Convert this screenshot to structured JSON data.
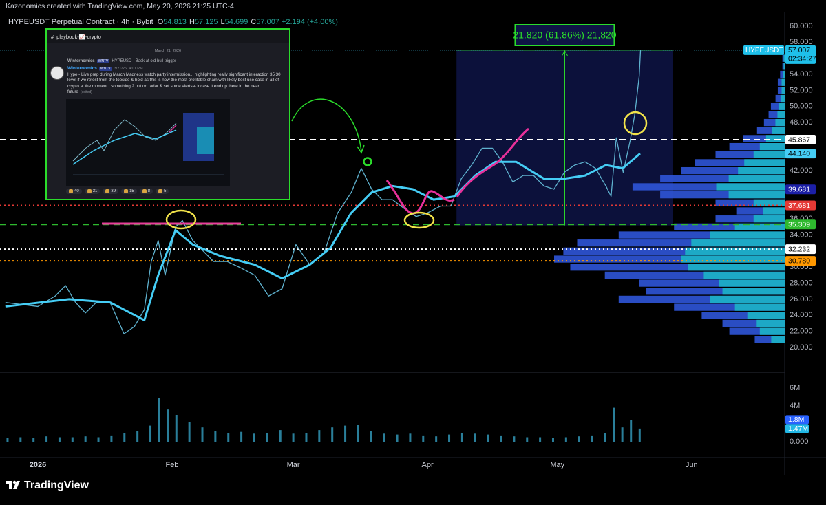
{
  "header": "Kazonomics created with TradingView.com, May 20, 2026 21:25 UTC-4",
  "chart_data": [
    {
      "type": "line",
      "title": "HYPEUSDT Perpetual Contract · 4h · Bybit",
      "ohlc_labels": [
        "O",
        "H",
        "L",
        "C"
      ],
      "ohlc": [
        54.813,
        57.125,
        54.699,
        57.007
      ],
      "change": {
        "value": 2.194,
        "label": "+2.194 (+4.00%)"
      },
      "countdown": "02:34:27",
      "xlim": [
        -7.47,
        172.5
      ],
      "xticks": [
        {
          "value": 0,
          "label": "2026"
        },
        {
          "value": 31,
          "label": "Feb"
        },
        {
          "value": 59,
          "label": "Mar"
        },
        {
          "value": 90,
          "label": "Apr"
        },
        {
          "value": 120,
          "label": "May"
        },
        {
          "value": 151,
          "label": "Jun"
        }
      ],
      "ylim": [
        17.0,
        61.71
      ],
      "yticks": [
        {
          "value": 20,
          "label": "20.000"
        },
        {
          "value": 22,
          "label": "22.000"
        },
        {
          "value": 24,
          "label": "24.000"
        },
        {
          "value": 26,
          "label": "26.000"
        },
        {
          "value": 28,
          "label": "28.000"
        },
        {
          "value": 30,
          "label": "30.000"
        },
        {
          "value": 34,
          "label": "34.000"
        },
        {
          "value": 36,
          "label": "36.000"
        },
        {
          "value": 42,
          "label": "42.000"
        },
        {
          "value": 48,
          "label": "48.000"
        },
        {
          "value": 50,
          "label": "50.000"
        },
        {
          "value": 52,
          "label": "52.000"
        },
        {
          "value": 54,
          "label": "54.000"
        },
        {
          "value": 58,
          "label": "58.000"
        },
        {
          "value": 60,
          "label": "60.000"
        }
      ],
      "grid": false,
      "series": [
        {
          "name": "HYPEUSDT.P",
          "color": "#5fb2cf",
          "x": [
            -7.5,
            0,
            4,
            6.4,
            8.7,
            11,
            13.5,
            16.7,
            19.9,
            22.3,
            24.6,
            26.2,
            27.8,
            29.4,
            31.8,
            33.4,
            35.8,
            38.2,
            40.6,
            43.7,
            46.9,
            50.1,
            53.3,
            56.4,
            59.6,
            62.8,
            66,
            69.2,
            72.4,
            74.7,
            77.1,
            79.5,
            81.9,
            85.1,
            87.4,
            89.8,
            93,
            95.4,
            97.8,
            100.2,
            102.6,
            105,
            107.3,
            109.7,
            112.1,
            114.5,
            116.9,
            119.2,
            121.6,
            124,
            126.4,
            128.8,
            131.2,
            132.4,
            133.6,
            135.2,
            136.8,
            137.9,
            138.9,
            139.2
          ],
          "values": [
            25.6,
            25.1,
            26.4,
            27.7,
            25.6,
            24.3,
            25.6,
            25.6,
            21.7,
            22.6,
            24.7,
            30.7,
            33.3,
            29,
            35,
            35.8,
            33.3,
            32,
            30.7,
            30.7,
            29.9,
            29,
            26.4,
            27.3,
            32.8,
            30.3,
            31.6,
            36.7,
            39.3,
            42.3,
            39.7,
            38.4,
            38.4,
            37.1,
            36.3,
            36.7,
            37.6,
            37.6,
            41,
            42.7,
            44.8,
            44.8,
            43.1,
            40.6,
            41.4,
            41.4,
            40.1,
            39.7,
            41.8,
            42.7,
            43.1,
            42.3,
            40.1,
            38.8,
            46.1,
            41.8,
            45.7,
            49.1,
            53.8,
            57.007
          ]
        },
        {
          "color": "#45cdf5",
          "x": [
            -7.5,
            7.2,
            16.7,
            24.6,
            27.8,
            31.8,
            35.8,
            42.1,
            50.1,
            56.4,
            62.8,
            67.6,
            72.3,
            77.1,
            81.9,
            86.6,
            91.4,
            96.2,
            101,
            105.7,
            110.5,
            116.9,
            121.6,
            126.4,
            131.2,
            135.1,
            139.1
          ],
          "values": [
            25.1,
            26,
            25.6,
            23.4,
            29,
            34.6,
            32.8,
            31.4,
            30.3,
            28.6,
            30.3,
            32.4,
            36.7,
            39.3,
            40.1,
            39.7,
            38.4,
            38.8,
            41.4,
            43.1,
            43.1,
            41,
            41,
            41.4,
            42.7,
            42.3,
            44.14
          ]
        }
      ],
      "price_tags": [
        {
          "value": 45.867,
          "color": "#ffffff",
          "text_color": "#000000",
          "line": "dashed"
        },
        {
          "value": 44.14,
          "label": "44.140",
          "color": "#45cdf5",
          "text_color": "#000000"
        },
        {
          "value": 39.681,
          "color": "#1c1fa6",
          "text_color": "#ffffff"
        },
        {
          "value": 37.681,
          "color": "#e53935",
          "text_color": "#ffffff",
          "line": "dotted"
        },
        {
          "value": 35.309,
          "color": "#2eb82e",
          "text_color": "#ffffff",
          "line": "dashed"
        },
        {
          "value": 32.232,
          "color": "#ffffff",
          "text_color": "#000000",
          "line": "dotted"
        },
        {
          "value": 30.78,
          "label": "30.780",
          "color": "#ff9800",
          "text_color": "#000000",
          "line": "dotted"
        }
      ],
      "measure": {
        "label": "21.820 (61.86%) 21,820",
        "range": [
          35.187,
          57.007
        ],
        "x_range": [
          96.7,
          146.7
        ],
        "color": "#2bdc2b"
      },
      "volume_profile": {
        "prices": [
          21,
          22,
          23,
          24,
          25,
          26,
          27,
          28,
          29,
          30,
          31,
          32,
          33,
          34,
          35,
          36,
          37,
          38,
          39,
          40,
          41,
          42,
          43,
          44,
          45,
          46,
          47,
          48,
          49,
          50,
          51,
          52,
          53,
          54,
          55,
          56
        ],
        "volumes": [
          13,
          24,
          27,
          36,
          48,
          72,
          60,
          63,
          78,
          93,
          100,
          96,
          90,
          72,
          48,
          30,
          21,
          30,
          54,
          66,
          54,
          45,
          39,
          30,
          24,
          18,
          12,
          9,
          7,
          6,
          4,
          3,
          3,
          2,
          1,
          1
        ]
      }
    },
    {
      "type": "bar",
      "color": "#2a7f9a",
      "x": [
        -7,
        -4,
        -1,
        2,
        5,
        8,
        11,
        14,
        17,
        20,
        23,
        26,
        28,
        30,
        32,
        35,
        38,
        41,
        44,
        47,
        50,
        53,
        56,
        59,
        62,
        65,
        68,
        71,
        74,
        77,
        80,
        83,
        86,
        89,
        92,
        95,
        98,
        101,
        104,
        107,
        110,
        113,
        116,
        119,
        122,
        125,
        128,
        131,
        133,
        135,
        137,
        139
      ],
      "values": [
        400000,
        500000,
        400000,
        600000,
        500000,
        500000,
        600000,
        500000,
        700000,
        1000000,
        1200000,
        1800000,
        4900000,
        3600000,
        3000000,
        2200000,
        1600000,
        1200000,
        1000000,
        1100000,
        900000,
        1000000,
        1300000,
        900000,
        1000000,
        1300000,
        1600000,
        1800000,
        1900000,
        1200000,
        900000,
        800000,
        900000,
        700000,
        600000,
        800000,
        1000000,
        900000,
        800000,
        700000,
        600000,
        500000,
        500000,
        400000,
        500000,
        600000,
        700000,
        1000000,
        3800000,
        1600000,
        2400000,
        1470000
      ],
      "ylim": [
        -2000000,
        7460000
      ],
      "yticks": [
        {
          "value": 0,
          "label": "0.000"
        },
        {
          "value": 4000000,
          "label": "4M"
        },
        {
          "value": 6000000,
          "label": "6M"
        }
      ],
      "value_tags": [
        {
          "value": 1800000,
          "label": "1.8M",
          "color": "#2962ff"
        },
        {
          "value": 1470000,
          "label": "1.47M",
          "color": "#22b8e6"
        }
      ]
    }
  ],
  "inset": {
    "channel": "playbook-📈-crypto",
    "date": "March 21, 2026",
    "reply_author": "Winternomics",
    "reply_tag": "WNTV",
    "reply_text": "HYPEUSD - Back at old bull trigger",
    "author": "Winternomics",
    "tag": "WNTV",
    "time": "3/21/26, 4:01 PM",
    "message": "Hype - Live prep during March Madness watch party intermission... highlighting really significant interaction 35:30 level if we retest from the topside & hold as this is now the most profitable chain with likely best use case in all of crypto at the moment...something 2 put on radar & set some alerts 4 incase it end up there in the near future",
    "edited": "(edited)",
    "reactions": [
      40,
      31,
      39,
      15,
      8,
      5
    ]
  },
  "footer": "TradingView"
}
